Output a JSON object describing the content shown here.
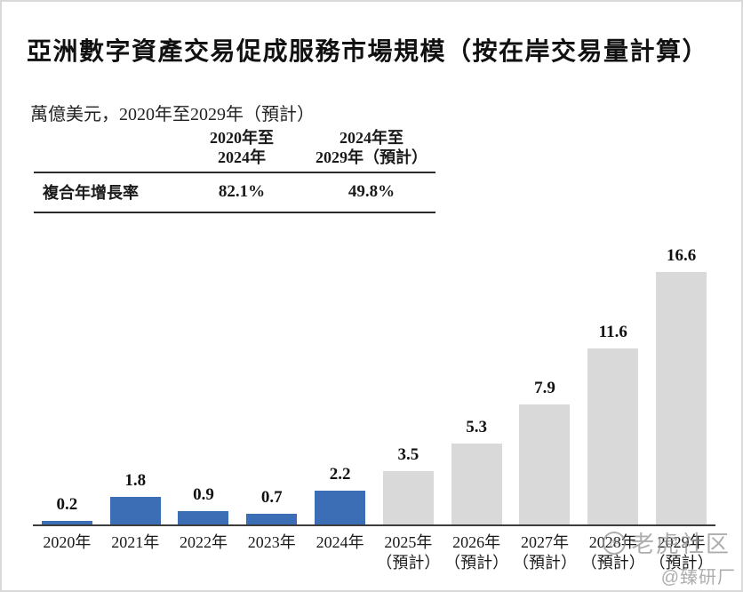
{
  "page": {
    "title": "亞洲數字資產交易促成服務市場規模（按在岸交易量計算）",
    "subtitle": "萬億美元，2020年至2029年（預計）"
  },
  "cagr_table": {
    "period1_line1": "2020年至",
    "period1_line2": "2024年",
    "period2_line1": "2024年至",
    "period2_line2": "2029年（預計）",
    "row_label": "複合年增長率",
    "period1_value": "82.1%",
    "period2_value": "49.8%"
  },
  "chart_data": {
    "type": "bar",
    "title": "亞洲數字資產交易促成服務市場規模（按在岸交易量計算）",
    "unit": "萬億美元",
    "categories": [
      "2020年",
      "2021年",
      "2022年",
      "2023年",
      "2024年",
      "2025年（預計）",
      "2026年（預計）",
      "2027年（預計）",
      "2028年（預計）",
      "2029年（預計）"
    ],
    "values": [
      0.2,
      1.8,
      0.9,
      0.7,
      2.2,
      3.5,
      5.3,
      7.9,
      11.6,
      16.6
    ],
    "historical_count": 5,
    "colors": {
      "historical": "#3B6EB4",
      "forecast": "#D9D9D9",
      "axis": "#3D3D3D"
    },
    "xlabel": "",
    "ylabel": "",
    "ylim": [
      0,
      17.5
    ],
    "grid": false,
    "legend": "none",
    "value_labels": true
  },
  "watermark": {
    "logo": "tiger-logo",
    "logo_glyph": "虎",
    "community": "老虎社区",
    "handle": "@臻研厂"
  }
}
